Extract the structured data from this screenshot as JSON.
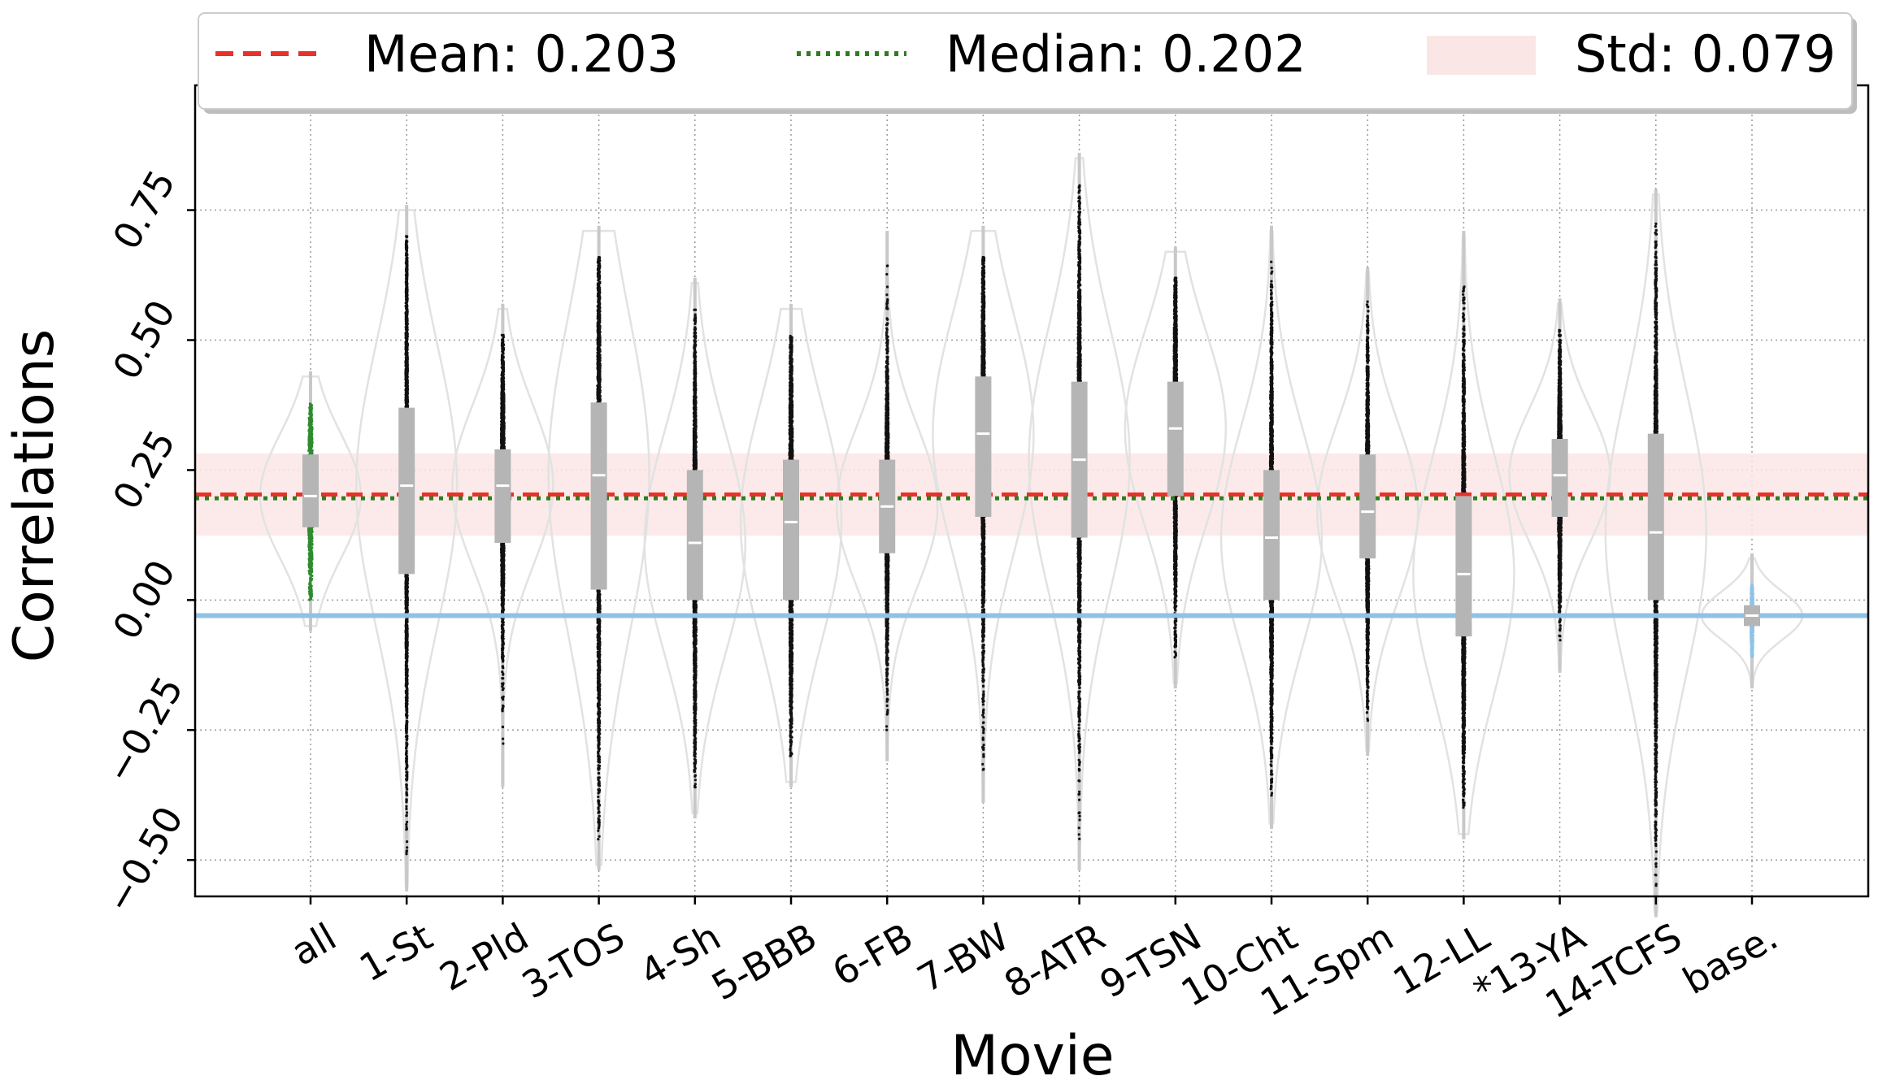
{
  "chart_data": {
    "type": "violin-strip",
    "title": "",
    "xlabel": "Movie",
    "ylabel": "Correlations",
    "ylim": [
      -0.57,
      0.99
    ],
    "yticks": [
      -0.5,
      -0.25,
      0.0,
      0.25,
      0.5,
      0.75
    ],
    "ytick_labels": [
      "−0.50",
      "−0.25",
      "0.00",
      "0.25",
      "0.50",
      "0.75"
    ],
    "grid": true,
    "legend": {
      "placement": "top",
      "entries": [
        {
          "label": "Mean: 0.203",
          "style": "dashed",
          "color": "#e8312a"
        },
        {
          "label": "Median: 0.202",
          "style": "dotted",
          "color": "#2e7d1f"
        },
        {
          "label": "Std: 0.079",
          "style": "patch",
          "color": "#fbe6e6"
        }
      ]
    },
    "reference_lines": {
      "mean": 0.203,
      "median": 0.202,
      "std": 0.079,
      "baseline": -0.03
    },
    "categories": [
      "all",
      "1-St",
      "2-Pld",
      "3-TOS",
      "4-Sh",
      "5-BBB",
      "6-FB",
      "7-BW",
      "8-ATR",
      "9-TSN",
      "10-Cht",
      "11-Spm",
      "12-LL",
      "*13-YA",
      "14-TCFS",
      "base."
    ],
    "series": [
      {
        "name": "all",
        "color": "#2e8b2e",
        "min": 0.0,
        "max": 0.38,
        "q1": 0.14,
        "median": 0.2,
        "q3": 0.28,
        "point_half_width": 0.2
      },
      {
        "name": "1-St",
        "color": "#111111",
        "min": -0.5,
        "max": 0.7,
        "q1": 0.05,
        "median": 0.22,
        "q3": 0.37,
        "point_half_width": 0.11
      },
      {
        "name": "2-Pld",
        "color": "#111111",
        "min": -0.3,
        "max": 0.51,
        "q1": 0.11,
        "median": 0.22,
        "q3": 0.29,
        "point_half_width": 0.16
      },
      {
        "name": "3-TOS",
        "color": "#111111",
        "min": -0.46,
        "max": 0.66,
        "q1": 0.02,
        "median": 0.24,
        "q3": 0.38,
        "point_half_width": 0.14
      },
      {
        "name": "4-Sh",
        "color": "#111111",
        "min": -0.36,
        "max": 0.56,
        "q1": 0.0,
        "median": 0.11,
        "q3": 0.25,
        "point_half_width": 0.14
      },
      {
        "name": "5-BBB",
        "color": "#111111",
        "min": -0.3,
        "max": 0.51,
        "q1": 0.0,
        "median": 0.15,
        "q3": 0.27,
        "point_half_width": 0.16
      },
      {
        "name": "6-FB",
        "color": "#111111",
        "min": -0.25,
        "max": 0.65,
        "q1": 0.09,
        "median": 0.18,
        "q3": 0.27,
        "point_half_width": 0.15
      },
      {
        "name": "7-BW",
        "color": "#111111",
        "min": -0.33,
        "max": 0.66,
        "q1": 0.16,
        "median": 0.32,
        "q3": 0.43,
        "point_half_width": 0.14
      },
      {
        "name": "8-ATR",
        "color": "#111111",
        "min": -0.46,
        "max": 0.8,
        "q1": 0.12,
        "median": 0.27,
        "q3": 0.42,
        "point_half_width": 0.14
      },
      {
        "name": "9-TSN",
        "color": "#111111",
        "min": -0.11,
        "max": 0.62,
        "q1": 0.2,
        "median": 0.33,
        "q3": 0.42,
        "point_half_width": 0.15
      },
      {
        "name": "10-Cht",
        "color": "#111111",
        "min": -0.38,
        "max": 0.66,
        "q1": 0.0,
        "median": 0.12,
        "q3": 0.25,
        "point_half_width": 0.14
      },
      {
        "name": "11-Spm",
        "color": "#111111",
        "min": -0.24,
        "max": 0.58,
        "q1": 0.08,
        "median": 0.17,
        "q3": 0.28,
        "point_half_width": 0.14
      },
      {
        "name": "12-LL",
        "color": "#111111",
        "min": -0.4,
        "max": 0.65,
        "q1": -0.07,
        "median": 0.05,
        "q3": 0.2,
        "point_half_width": 0.14
      },
      {
        "name": "*13-YA",
        "color": "#111111",
        "min": -0.08,
        "max": 0.52,
        "q1": 0.16,
        "median": 0.24,
        "q3": 0.31,
        "point_half_width": 0.16
      },
      {
        "name": "14-TCFS",
        "color": "#111111",
        "min": -0.55,
        "max": 0.73,
        "q1": 0.0,
        "median": 0.13,
        "q3": 0.32,
        "point_half_width": 0.14
      },
      {
        "name": "base.",
        "color": "#8ec3e6",
        "min": -0.11,
        "max": 0.03,
        "q1": -0.05,
        "median": -0.03,
        "q3": -0.01,
        "point_half_width": 0.12
      }
    ]
  }
}
